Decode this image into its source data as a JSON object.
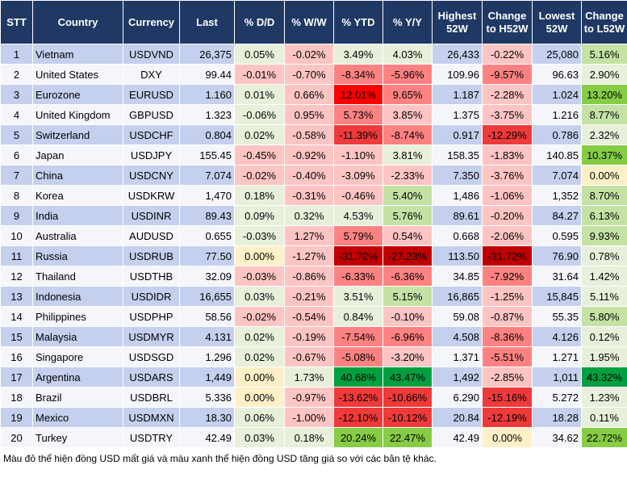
{
  "headers": [
    "STT",
    "Country",
    "Currency",
    "Last",
    "% D/D",
    "% W/W",
    "% YTD",
    "% Y/Y",
    "Highest 52W",
    "Change to H52W",
    "Lowest 52W",
    "Change to L52W"
  ],
  "tone_colors": {
    "p": "#e8f0dc",
    "n": "#ffc4c4",
    "z": "#fff0c8",
    "m": "#ff8282",
    "r": "#ee3a3a",
    "R": "#ff0000",
    "D": "#c00000",
    "g": "#c4e2a4",
    "G": "#86cc44",
    "E": "#00a040"
  },
  "rows": [
    {
      "cells": [
        "1",
        "Vietnam",
        "USDVND",
        "26,375",
        "0.05%",
        "-0.02%",
        "3.49%",
        "4.03%",
        "26,433",
        "-0.22%",
        "25,080",
        "5.16%"
      ],
      "tones": [
        "p",
        "n",
        "p",
        "p",
        "n",
        "g"
      ]
    },
    {
      "cells": [
        "2",
        "United States",
        "DXY",
        "99.44",
        "-0.01%",
        "-0.70%",
        "-8.34%",
        "-5.96%",
        "109.96",
        "-9.57%",
        "96.63",
        "2.90%"
      ],
      "tones": [
        "n",
        "n",
        "m",
        "m",
        "m",
        "p"
      ]
    },
    {
      "cells": [
        "3",
        "Eurozone",
        "EURUSD",
        "1.160",
        "0.01%",
        "0.66%",
        "12.01%",
        "9.65%",
        "1.187",
        "-2.28%",
        "1.024",
        "13.20%"
      ],
      "tones": [
        "p",
        "n",
        "R",
        "m",
        "n",
        "G"
      ]
    },
    {
      "cells": [
        "4",
        "United Kingdom",
        "GBPUSD",
        "1.323",
        "-0.06%",
        "0.95%",
        "5.73%",
        "3.85%",
        "1.375",
        "-3.75%",
        "1.216",
        "8.77%"
      ],
      "tones": [
        "p",
        "n",
        "m",
        "n",
        "n",
        "g"
      ]
    },
    {
      "cells": [
        "5",
        "Switzerland",
        "USDCHF",
        "0.804",
        "0.02%",
        "-0.58%",
        "-11.39%",
        "-8.74%",
        "0.917",
        "-12.29%",
        "0.786",
        "2.32%"
      ],
      "tones": [
        "p",
        "n",
        "r",
        "m",
        "r",
        "p"
      ]
    },
    {
      "cells": [
        "6",
        "Japan",
        "USDJPY",
        "155.45",
        "-0.45%",
        "-0.92%",
        "-1.10%",
        "3.81%",
        "158.35",
        "-1.83%",
        "140.85",
        "10.37%"
      ],
      "tones": [
        "n",
        "n",
        "n",
        "p",
        "n",
        "G"
      ]
    },
    {
      "cells": [
        "7",
        "China",
        "USDCNY",
        "7.074",
        "-0.02%",
        "-0.40%",
        "-3.09%",
        "-2.33%",
        "7.350",
        "-3.76%",
        "7.074",
        "0.00%"
      ],
      "tones": [
        "n",
        "n",
        "n",
        "n",
        "n",
        "z"
      ]
    },
    {
      "cells": [
        "8",
        "Korea",
        "USDKRW",
        "1,470",
        "0.18%",
        "-0.31%",
        "-0.46%",
        "5.40%",
        "1,486",
        "-1.06%",
        "1,352",
        "8.70%"
      ],
      "tones": [
        "p",
        "n",
        "n",
        "g",
        "n",
        "g"
      ]
    },
    {
      "cells": [
        "9",
        "India",
        "USDINR",
        "89.43",
        "0.09%",
        "0.32%",
        "4.53%",
        "5.76%",
        "89.61",
        "-0.20%",
        "84.27",
        "6.13%"
      ],
      "tones": [
        "p",
        "p",
        "p",
        "g",
        "n",
        "g"
      ]
    },
    {
      "cells": [
        "10",
        "Australia",
        "AUDUSD",
        "0.655",
        "-0.03%",
        "1.27%",
        "5.79%",
        "0.54%",
        "0.668",
        "-2.06%",
        "0.595",
        "9.93%"
      ],
      "tones": [
        "p",
        "n",
        "m",
        "n",
        "n",
        "g"
      ]
    },
    {
      "cells": [
        "11",
        "Russia",
        "USDRUB",
        "77.50",
        "0.00%",
        "-1.27%",
        "-31.72%",
        "-27.23%",
        "113.50",
        "-31.72%",
        "76.90",
        "0.78%"
      ],
      "tones": [
        "z",
        "n",
        "D",
        "D",
        "D",
        "p"
      ]
    },
    {
      "cells": [
        "12",
        "Thailand",
        "USDTHB",
        "32.09",
        "-0.03%",
        "-0.86%",
        "-6.33%",
        "-6.36%",
        "34.85",
        "-7.92%",
        "31.64",
        "1.42%"
      ],
      "tones": [
        "n",
        "n",
        "m",
        "m",
        "m",
        "p"
      ]
    },
    {
      "cells": [
        "13",
        "Indonesia",
        "USDIDR",
        "16,655",
        "0.03%",
        "-0.21%",
        "3.51%",
        "5.15%",
        "16,865",
        "-1.25%",
        "15,845",
        "5.11%"
      ],
      "tones": [
        "p",
        "n",
        "p",
        "g",
        "n",
        "p"
      ]
    },
    {
      "cells": [
        "14",
        "Philippines",
        "USDPHP",
        "58.56",
        "-0.02%",
        "-0.54%",
        "0.84%",
        "-0.10%",
        "59.08",
        "-0.87%",
        "55.35",
        "5.80%"
      ],
      "tones": [
        "n",
        "n",
        "p",
        "n",
        "n",
        "g"
      ]
    },
    {
      "cells": [
        "15",
        "Malaysia",
        "USDMYR",
        "4.131",
        "0.02%",
        "-0.19%",
        "-7.54%",
        "-6.96%",
        "4.508",
        "-8.36%",
        "4.126",
        "0.12%"
      ],
      "tones": [
        "p",
        "n",
        "m",
        "m",
        "m",
        "p"
      ]
    },
    {
      "cells": [
        "16",
        "Singapore",
        "USDSGD",
        "1.296",
        "0.02%",
        "-0.67%",
        "-5.08%",
        "-3.20%",
        "1.371",
        "-5.51%",
        "1.271",
        "1.95%"
      ],
      "tones": [
        "p",
        "n",
        "m",
        "n",
        "m",
        "p"
      ]
    },
    {
      "cells": [
        "17",
        "Argentina",
        "USDARS",
        "1,449",
        "0.00%",
        "1.73%",
        "40.68%",
        "43.47%",
        "1,492",
        "-2.85%",
        "1,011",
        "43.32%"
      ],
      "tones": [
        "z",
        "p",
        "E",
        "E",
        "n",
        "E"
      ]
    },
    {
      "cells": [
        "18",
        "Brazil",
        "USDBRL",
        "5.336",
        "0.00%",
        "-0.97%",
        "-13.62%",
        "-10.66%",
        "6.290",
        "-15.16%",
        "5.272",
        "1.23%"
      ],
      "tones": [
        "z",
        "n",
        "r",
        "r",
        "r",
        "p"
      ]
    },
    {
      "cells": [
        "19",
        "Mexico",
        "USDMXN",
        "18.30",
        "0.06%",
        "-1.00%",
        "-12.10%",
        "-10.12%",
        "20.84",
        "-12.19%",
        "18.28",
        "0.11%"
      ],
      "tones": [
        "p",
        "n",
        "r",
        "r",
        "r",
        "p"
      ]
    },
    {
      "cells": [
        "20",
        "Turkey",
        "USDTRY",
        "42.49",
        "0.03%",
        "0.18%",
        "20.24%",
        "22.47%",
        "42.49",
        "0.00%",
        "34.62",
        "22.72%"
      ],
      "tones": [
        "p",
        "p",
        "G",
        "G",
        "z",
        "G"
      ]
    }
  ],
  "footnote": "Màu đỏ thể hiện đồng USD mất giá và màu xanh thể hiện đồng USD tăng giá so với các bản tệ khác."
}
